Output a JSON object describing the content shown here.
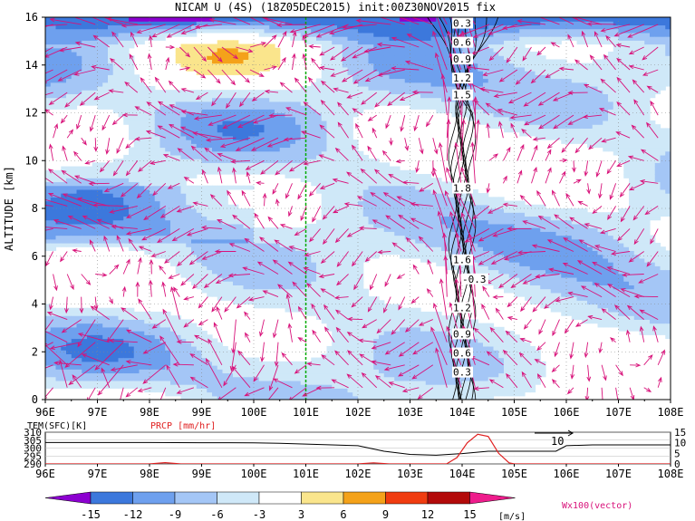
{
  "title": "NICAM U (4S) (18Z05DEC2015) init:00Z30NOV2015 fix",
  "colors": {
    "c_m12": "#3c78dc",
    "c_m9": "#6ea0ee",
    "c_m6": "#a4c6f6",
    "c_m3": "#cfe8f8",
    "c_0": "#ffffff",
    "c_3": "#fae58c",
    "c_6": "#f4a21a",
    "c_9": "#f03c10",
    "c_12": "#b30a0a",
    "c_15": "#ee1c8c",
    "c_m15": "#8c00d0",
    "vector": "#d8127a",
    "dashed_line": "#00aa00"
  },
  "chart_data": [
    {
      "type": "heatmap",
      "subtype": "longitude-height cross section with wind vectors",
      "xlabel": "",
      "ylabel": "ALTITUDE [km]",
      "x_ticks": [
        "96E",
        "97E",
        "98E",
        "99E",
        "100E",
        "101E",
        "102E",
        "103E",
        "104E",
        "105E",
        "106E",
        "107E",
        "108E"
      ],
      "y_ticks": [
        "0",
        "2",
        "4",
        "6",
        "8",
        "10",
        "12",
        "14",
        "16"
      ],
      "xlim": [
        96,
        108
      ],
      "ylim": [
        0,
        16
      ],
      "marked_longitude": 101,
      "contour_labels": [
        "0.3",
        "0.6",
        "0.9",
        "1.2",
        "1.5",
        "1.8",
        "1.6",
        "-0.3",
        "1.2",
        "0.9",
        "0.6",
        "0.3"
      ],
      "colorbar": {
        "levels": [
          "-15",
          "-12",
          "-9",
          "-6",
          "-3",
          "3",
          "6",
          "9",
          "12",
          "15"
        ],
        "unit": "[m/s]"
      },
      "vector_label": "Wx100(vector)"
    },
    {
      "type": "line",
      "xlim": [
        96,
        108
      ],
      "x_ticks": [
        "96E",
        "97E",
        "98E",
        "99E",
        "100E",
        "101E",
        "102E",
        "103E",
        "104E",
        "105E",
        "106E",
        "107E",
        "108E"
      ],
      "left_axis": {
        "label": "TEM(SFC)[K]",
        "ticks": [
          "310",
          "305",
          "300",
          "295",
          "290"
        ],
        "range": [
          290,
          310
        ]
      },
      "right_axis": {
        "label": "PRCP [mm/hr]",
        "ticks": [
          "15",
          "10",
          "5",
          "0"
        ],
        "range": [
          0,
          15
        ]
      },
      "annotation": "10",
      "series": [
        {
          "name": "TEM(SFC)[K]",
          "x": [
            96,
            97,
            98,
            99,
            100,
            100.5,
            101,
            101.5,
            102,
            102.5,
            103,
            103.5,
            104,
            104.5,
            105,
            105.5,
            105.8,
            106,
            106.5,
            107,
            108
          ],
          "y": [
            303.5,
            303.5,
            303.5,
            303.4,
            303.3,
            303,
            302.5,
            302,
            301.5,
            298,
            296,
            295.5,
            296.5,
            298,
            298,
            298,
            298,
            301.5,
            302,
            302,
            302
          ]
        },
        {
          "name": "PRCP [mm/hr]",
          "x": [
            96,
            97.5,
            98,
            98.3,
            98.6,
            99,
            101.5,
            102,
            102.3,
            102.6,
            103,
            103.7,
            103.9,
            104.1,
            104.3,
            104.5,
            104.7,
            104.9,
            105,
            106,
            108
          ],
          "y": [
            0,
            0,
            0,
            0.6,
            0,
            0,
            0,
            0,
            0.5,
            0,
            0,
            0,
            3,
            10,
            14,
            13,
            5,
            0.5,
            0,
            0,
            0
          ]
        }
      ]
    }
  ]
}
